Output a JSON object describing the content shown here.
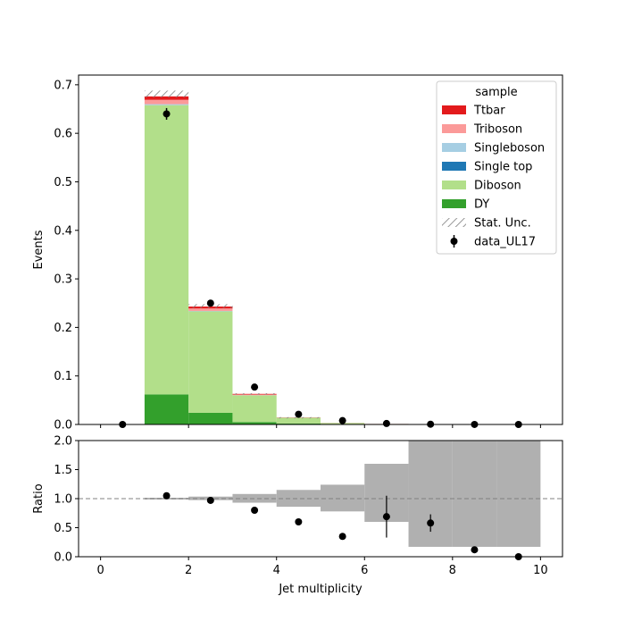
{
  "chart_data": [
    {
      "panel": "main",
      "type": "bar",
      "stacked": true,
      "bin_edges": [
        0,
        1,
        2,
        3,
        4,
        5,
        6,
        7,
        8,
        9,
        10
      ],
      "ylabel": "Events",
      "xlabel": "",
      "ylim": [
        0,
        0.72
      ],
      "xlim": [
        -0.5,
        10.5
      ],
      "yticks": [
        0.0,
        0.1,
        0.2,
        0.3,
        0.4,
        0.5,
        0.6,
        0.7
      ],
      "ytick_labels": [
        "0.0",
        "0.1",
        "0.2",
        "0.3",
        "0.4",
        "0.5",
        "0.6",
        "0.7"
      ],
      "series": [
        {
          "name": "DY",
          "color": "#33a02c",
          "values": [
            0,
            0.062,
            0.024,
            0.005,
            0.002,
            0.001,
            0.0005,
            0.0002,
            0,
            0
          ]
        },
        {
          "name": "Diboson",
          "color": "#b2df8a",
          "values": [
            0,
            0.596,
            0.209,
            0.055,
            0.012,
            0.002,
            0.0005,
            0.0002,
            0,
            0
          ]
        },
        {
          "name": "Single top",
          "color": "#1f78b4",
          "values": [
            0,
            0.0,
            0.0,
            0.0,
            0.0,
            0.0,
            0.0,
            0.0,
            0,
            0
          ]
        },
        {
          "name": "Singleboson",
          "color": "#a6cee3",
          "values": [
            0,
            0.002,
            0.001,
            0.0003,
            0.0001,
            0,
            0,
            0,
            0,
            0
          ]
        },
        {
          "name": "Triboson",
          "color": "#fb9a99",
          "values": [
            0,
            0.009,
            0.005,
            0.0015,
            0.0003,
            0.0001,
            0,
            0,
            0,
            0
          ]
        },
        {
          "name": "Ttbar",
          "color": "#e31a1c",
          "values": [
            0,
            0.007,
            0.004,
            0.0012,
            0.0003,
            0.0001,
            0.0001,
            0,
            0,
            0
          ]
        }
      ],
      "stat_unc": [
        {
          "bin": 1,
          "low": 0.674,
          "high": 0.688
        },
        {
          "bin": 2,
          "low": 0.24,
          "high": 0.248
        },
        {
          "bin": 3,
          "low": 0.0615,
          "high": 0.0645
        },
        {
          "bin": 4,
          "low": 0.0138,
          "high": 0.0152
        }
      ],
      "data": {
        "name": "data_UL17",
        "x": [
          0.5,
          1.5,
          2.5,
          3.5,
          4.5,
          5.5,
          6.5,
          7.5,
          8.5,
          9.5
        ],
        "y": [
          0.0,
          0.64,
          0.25,
          0.077,
          0.021,
          0.008,
          0.002,
          0.0005,
          0.0001,
          0.0
        ],
        "yerr": [
          0.0,
          0.012,
          0.007,
          0.004,
          0.002,
          0.001,
          0.0006,
          0.0002,
          0.0001,
          0.0
        ]
      },
      "legend": {
        "title": "sample",
        "placement": "upper-right",
        "entries": [
          {
            "label": "Ttbar",
            "kind": "patch",
            "color": "#e31a1c"
          },
          {
            "label": "Triboson",
            "kind": "patch",
            "color": "#fb9a99"
          },
          {
            "label": "Singleboson",
            "kind": "patch",
            "color": "#a6cee3"
          },
          {
            "label": "Single top",
            "kind": "patch",
            "color": "#1f78b4"
          },
          {
            "label": "Diboson",
            "kind": "patch",
            "color": "#b2df8a"
          },
          {
            "label": "DY",
            "kind": "patch",
            "color": "#33a02c"
          },
          {
            "label": "Stat. Unc.",
            "kind": "hatch",
            "color": "#808080"
          },
          {
            "label": "data_UL17",
            "kind": "errorbar",
            "color": "#000000"
          }
        ]
      }
    },
    {
      "panel": "ratio",
      "type": "scatter",
      "xlabel": "Jet multiplicity",
      "ylabel": "Ratio",
      "ylim": [
        0.0,
        2.0
      ],
      "xlim": [
        -0.5,
        10.5
      ],
      "reference_line": 1.0,
      "xticks": [
        0,
        2,
        4,
        6,
        8,
        10
      ],
      "xtick_labels": [
        "0",
        "2",
        "4",
        "6",
        "8",
        "10"
      ],
      "yticks": [
        0.0,
        0.5,
        1.0,
        1.5,
        2.0
      ],
      "ytick_labels": [
        "0.0",
        "0.5",
        "1.0",
        "1.5",
        "2.0"
      ],
      "unc_band": [
        {
          "bin": 1,
          "low": 0.985,
          "high": 1.015
        },
        {
          "bin": 2,
          "low": 0.975,
          "high": 1.035
        },
        {
          "bin": 3,
          "low": 0.93,
          "high": 1.08
        },
        {
          "bin": 4,
          "low": 0.86,
          "high": 1.15
        },
        {
          "bin": 5,
          "low": 0.78,
          "high": 1.24
        },
        {
          "bin": 6,
          "low": 0.6,
          "high": 1.6
        },
        {
          "bin": 7,
          "low": 0.17,
          "high": 2.0
        },
        {
          "bin": 8,
          "low": 0.17,
          "high": 2.0
        },
        {
          "bin": 9,
          "low": 0.17,
          "high": 2.0
        }
      ],
      "band_color": "#b0b0b0",
      "points": {
        "x": [
          1.5,
          2.5,
          3.5,
          4.5,
          5.5,
          6.5,
          7.5,
          8.5,
          9.5
        ],
        "y": [
          1.05,
          0.97,
          0.8,
          0.6,
          0.35,
          0.69,
          0.58,
          0.12,
          0.0
        ],
        "yerr": [
          0.02,
          0.02,
          0.03,
          0.04,
          0.03,
          0.36,
          0.15,
          0.02,
          0.0
        ]
      }
    }
  ]
}
